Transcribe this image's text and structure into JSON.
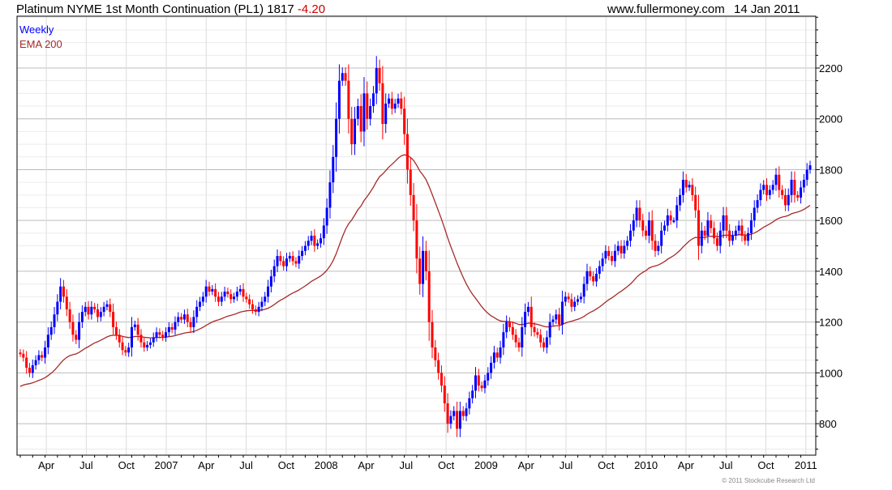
{
  "header": {
    "title": "Platinum NYME 1st Month Continuation (PL1) 1817",
    "change": "-4.20",
    "site": "www.fullermoney.com",
    "date": "14 Jan 2011"
  },
  "legend": {
    "series": "Weekly",
    "indicator": "EMA 200"
  },
  "copyright": "© 2011 Stockcube Research Ltd",
  "colors": {
    "up": "#0000ff",
    "down": "#ff0000",
    "ema": "#a52a2a",
    "change": "#cc0000"
  },
  "chart_data": {
    "type": "candlestick",
    "title": "Platinum NYME 1st Month Continuation (PL1)",
    "frequency": "weekly",
    "ylim": [
      676,
      2404
    ],
    "yticks": [
      800,
      1000,
      1200,
      1400,
      1600,
      1800,
      2000,
      2200
    ],
    "xticks": [
      "Apr",
      "Jul",
      "Oct",
      "2007",
      "Apr",
      "Jul",
      "Oct",
      "2008",
      "Apr",
      "Jul",
      "Oct",
      "2009",
      "Apr",
      "Jul",
      "Oct",
      "2010",
      "Apr",
      "Jul",
      "Oct",
      "2011"
    ],
    "ema": {
      "label": "EMA 200",
      "seed": 940,
      "period_weeks": 40
    },
    "first_open": 1080,
    "close": [
      1075,
      1060,
      1020,
      1000,
      1030,
      1050,
      1070,
      1060,
      1100,
      1150,
      1180,
      1230,
      1280,
      1340,
      1300,
      1250,
      1200,
      1150,
      1130,
      1200,
      1240,
      1260,
      1230,
      1260,
      1250,
      1220,
      1240,
      1260,
      1270,
      1240,
      1180,
      1150,
      1120,
      1090,
      1080,
      1100,
      1180,
      1190,
      1150,
      1120,
      1100,
      1110,
      1120,
      1140,
      1160,
      1150,
      1140,
      1160,
      1180,
      1170,
      1200,
      1220,
      1210,
      1230,
      1200,
      1180,
      1220,
      1260,
      1280,
      1300,
      1340,
      1320,
      1330,
      1300,
      1280,
      1300,
      1320,
      1310,
      1290,
      1300,
      1320,
      1330,
      1300,
      1290,
      1270,
      1250,
      1240,
      1260,
      1280,
      1300,
      1340,
      1380,
      1420,
      1460,
      1440,
      1420,
      1450,
      1460,
      1440,
      1430,
      1460,
      1480,
      1500,
      1520,
      1540,
      1500,
      1510,
      1530,
      1580,
      1650,
      1750,
      1850,
      2000,
      2150,
      2180,
      2150,
      2000,
      1900,
      2000,
      2050,
      1950,
      2100,
      2000,
      2050,
      2100,
      2200,
      2140,
      1980,
      2060,
      2080,
      2040,
      2060,
      2080,
      2040,
      1940,
      1800,
      1700,
      1600,
      1450,
      1350,
      1480,
      1400,
      1200,
      1100,
      1050,
      1000,
      950,
      880,
      800,
      830,
      850,
      780,
      850,
      830,
      860,
      900,
      930,
      990,
      950,
      940,
      970,
      1000,
      1040,
      1080,
      1060,
      1100,
      1160,
      1200,
      1180,
      1150,
      1120,
      1100,
      1180,
      1240,
      1260,
      1180,
      1160,
      1150,
      1120,
      1100,
      1140,
      1200,
      1210,
      1230,
      1190,
      1280,
      1300,
      1290,
      1260,
      1280,
      1290,
      1300,
      1350,
      1400,
      1380,
      1360,
      1390,
      1420,
      1450,
      1480,
      1460,
      1440,
      1480,
      1500,
      1470,
      1500,
      1520,
      1560,
      1600,
      1650,
      1600,
      1560,
      1540,
      1600,
      1520,
      1480,
      1500,
      1560,
      1580,
      1620,
      1600,
      1600,
      1660,
      1700,
      1760,
      1730,
      1740,
      1700,
      1640,
      1500,
      1560,
      1540,
      1600,
      1570,
      1530,
      1500,
      1560,
      1620,
      1560,
      1520,
      1540,
      1560,
      1580,
      1540,
      1520,
      1550,
      1600,
      1650,
      1680,
      1720,
      1740,
      1700,
      1720,
      1740,
      1780,
      1720,
      1700,
      1660,
      1700,
      1760,
      1700,
      1690,
      1730,
      1760,
      1800,
      1817
    ]
  }
}
